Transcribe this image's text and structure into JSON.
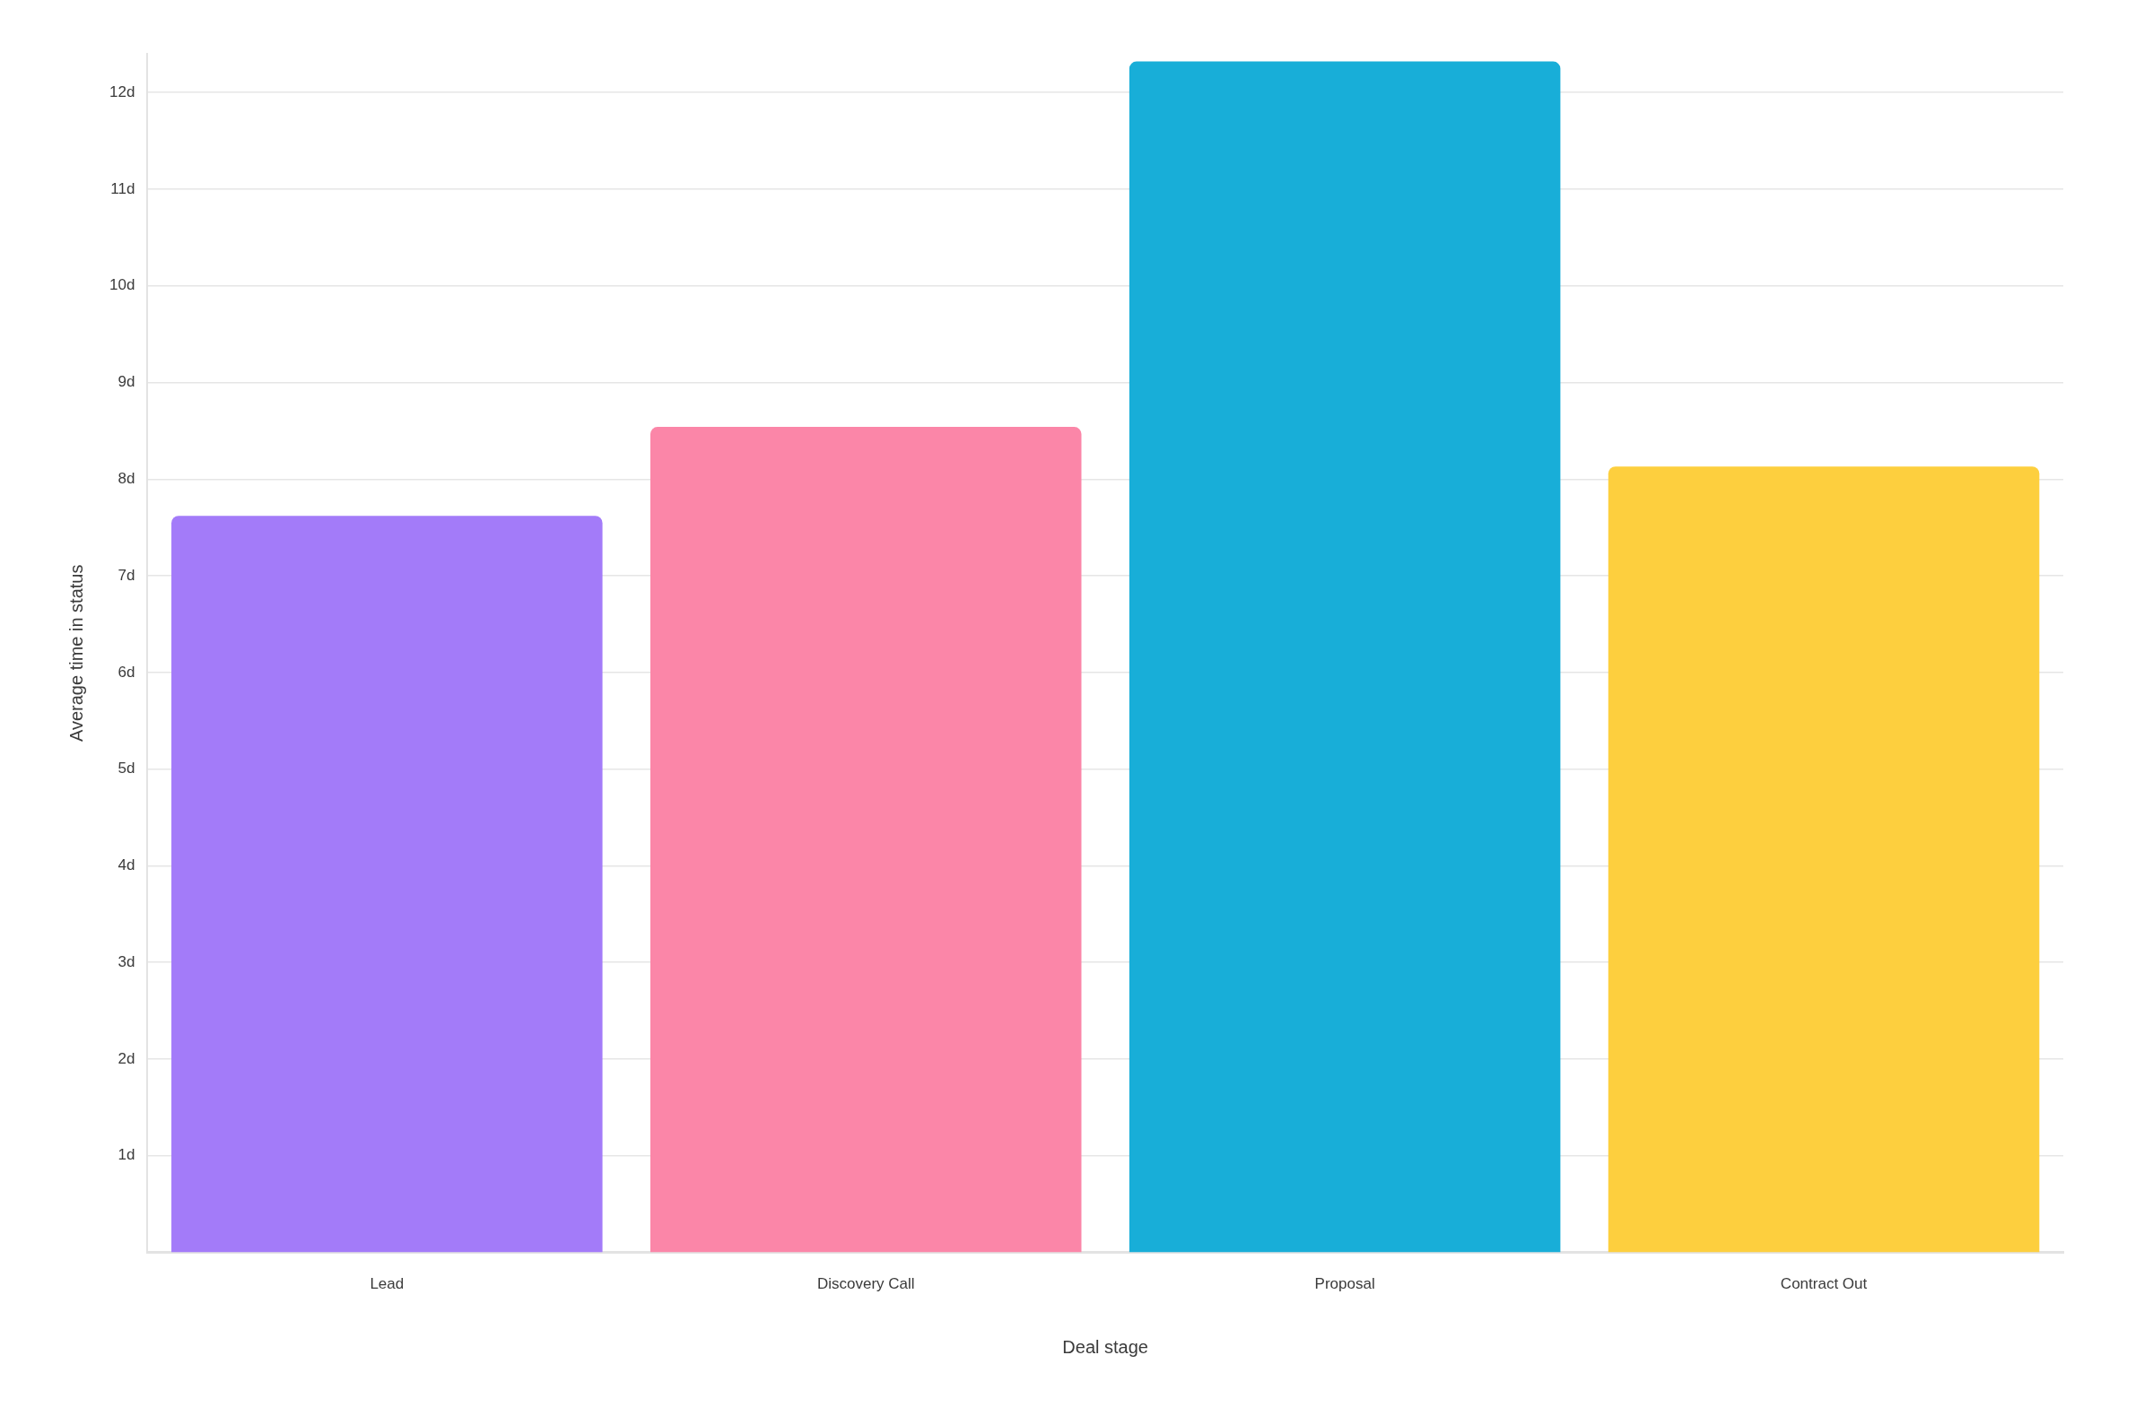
{
  "chart_data": {
    "type": "bar",
    "xlabel": "Deal stage",
    "ylabel": "Average time in status",
    "categories": [
      "Lead",
      "Discovery Call",
      "Proposal",
      "Contract Out"
    ],
    "values": [
      7.62,
      8.54,
      12.32,
      8.13
    ],
    "colors": [
      "#a37bf9",
      "#fb86a8",
      "#18aed8",
      "#fdcf3e"
    ],
    "yticks": [
      {
        "value": 1,
        "label": "1d"
      },
      {
        "value": 2,
        "label": "2d"
      },
      {
        "value": 3,
        "label": "3d"
      },
      {
        "value": 4,
        "label": "4d"
      },
      {
        "value": 5,
        "label": "5d"
      },
      {
        "value": 6,
        "label": "6d"
      },
      {
        "value": 7,
        "label": "7d"
      },
      {
        "value": 8,
        "label": "8d"
      },
      {
        "value": 9,
        "label": "9d"
      },
      {
        "value": 10,
        "label": "10d"
      },
      {
        "value": 11,
        "label": "11d"
      },
      {
        "value": 12,
        "label": "12d"
      }
    ],
    "ylim": [
      0,
      12.4
    ],
    "grid": "y",
    "legend": false
  }
}
